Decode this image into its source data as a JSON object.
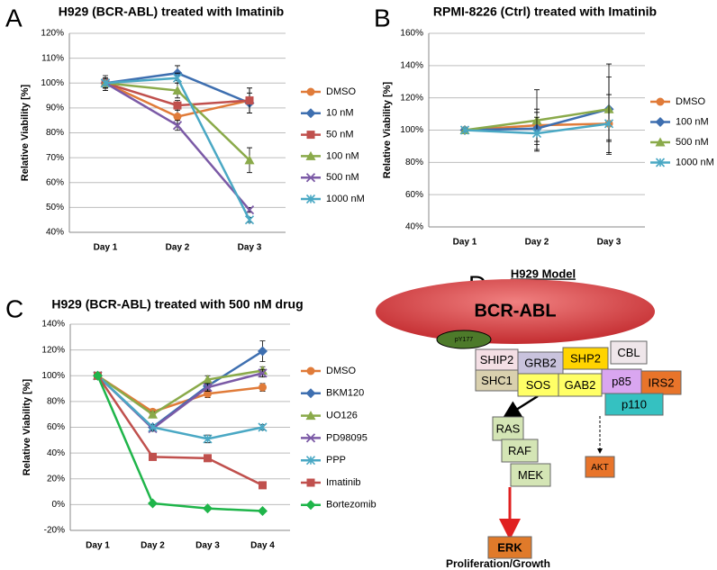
{
  "chart_data": [
    {
      "type": "line",
      "panel": "A",
      "title": "H929 (BCR-ABL) treated with Imatinib",
      "ylabel": "Relative Viability [%]",
      "grid": true,
      "categories": [
        "Day 1",
        "Day 2",
        "Day 3"
      ],
      "ylim": [
        40,
        120
      ],
      "yticks": [
        {
          "value": 40,
          "label": "40%"
        },
        {
          "value": 50,
          "label": "50%"
        },
        {
          "value": 60,
          "label": "60%"
        },
        {
          "value": 70,
          "label": "70%"
        },
        {
          "value": 80,
          "label": "80%"
        },
        {
          "value": 90,
          "label": "90%"
        },
        {
          "value": 100,
          "label": "100%"
        },
        {
          "value": 110,
          "label": "110%"
        },
        {
          "value": 120,
          "label": "120%"
        }
      ],
      "series": [
        {
          "name": "DMSO",
          "color": "#e07b39",
          "marker": "circle",
          "values": [
            100,
            86.5,
            93
          ],
          "errors": [
            2,
            3,
            5
          ]
        },
        {
          "name": "10 nM",
          "color": "#3e6fb0",
          "marker": "diamond",
          "values": [
            100,
            104,
            92
          ],
          "errors": [
            3,
            3,
            4
          ]
        },
        {
          "name": "50 nM",
          "color": "#c0504d",
          "marker": "square",
          "values": [
            100,
            91,
            93
          ],
          "errors": [
            2,
            2,
            5
          ]
        },
        {
          "name": "100 nM",
          "color": "#8aaa4a",
          "marker": "triangle",
          "values": [
            100,
            97,
            69
          ],
          "errors": [
            2,
            3,
            5
          ]
        },
        {
          "name": "500 nM",
          "color": "#7b5aa6",
          "marker": "x",
          "values": [
            100,
            83,
            49
          ],
          "errors": [
            2,
            2,
            1
          ]
        },
        {
          "name": "1000 nM",
          "color": "#4aa8c4",
          "marker": "star",
          "values": [
            100,
            102,
            45
          ],
          "errors": [
            2,
            2,
            1
          ]
        }
      ]
    },
    {
      "type": "line",
      "panel": "B",
      "title": "RPMI-8226 (Ctrl) treated with Imatinib",
      "ylabel": "Relative Viability [%]",
      "grid": true,
      "categories": [
        "Day 1",
        "Day 2",
        "Day 3"
      ],
      "ylim": [
        40,
        160
      ],
      "yticks": [
        {
          "value": 40,
          "label": "40%"
        },
        {
          "value": 60,
          "label": "60%"
        },
        {
          "value": 80,
          "label": "80%"
        },
        {
          "value": 100,
          "label": "100%"
        },
        {
          "value": 120,
          "label": "120%"
        },
        {
          "value": 140,
          "label": "140%"
        },
        {
          "value": 160,
          "label": "160%"
        }
      ],
      "series": [
        {
          "name": "DMSO",
          "color": "#e07b39",
          "marker": "circle",
          "values": [
            100,
            103,
            104
          ],
          "errors": [
            1,
            10,
            10
          ]
        },
        {
          "name": "100 nM",
          "color": "#3e6fb0",
          "marker": "diamond",
          "values": [
            100,
            101,
            113
          ],
          "errors": [
            1,
            10,
            20
          ]
        },
        {
          "name": "500 nM",
          "color": "#8aaa4a",
          "marker": "triangle",
          "values": [
            100,
            106,
            113
          ],
          "errors": [
            1,
            19,
            28
          ]
        },
        {
          "name": "1000 nM",
          "color": "#4aa8c4",
          "marker": "star",
          "values": [
            100,
            98,
            104
          ],
          "errors": [
            1,
            10,
            18
          ]
        }
      ]
    },
    {
      "type": "line",
      "panel": "C",
      "title": "H929 (BCR-ABL) treated with 500 nM drug",
      "ylabel": "Relative Viability [%]",
      "grid": true,
      "categories": [
        "Day 1",
        "Day 2",
        "Day 3",
        "Day 4"
      ],
      "ylim": [
        -20,
        140
      ],
      "yticks": [
        {
          "value": -20,
          "label": "-20%"
        },
        {
          "value": 0,
          "label": "0%"
        },
        {
          "value": 20,
          "label": "20%"
        },
        {
          "value": 40,
          "label": "40%"
        },
        {
          "value": 60,
          "label": "60%"
        },
        {
          "value": 80,
          "label": "80%"
        },
        {
          "value": 100,
          "label": "100%"
        },
        {
          "value": 120,
          "label": "120%"
        },
        {
          "value": 140,
          "label": "140%"
        }
      ],
      "series": [
        {
          "name": "DMSO",
          "color": "#e07b39",
          "marker": "circle",
          "values": [
            100,
            72,
            86,
            91
          ],
          "errors": [
            0,
            2,
            3,
            3
          ]
        },
        {
          "name": "BKM120",
          "color": "#3e6fb0",
          "marker": "diamond",
          "values": [
            100,
            60,
            92,
            119
          ],
          "errors": [
            0,
            2,
            3,
            8
          ]
        },
        {
          "name": "UO126",
          "color": "#8aaa4a",
          "marker": "triangle",
          "values": [
            100,
            70,
            97,
            104
          ],
          "errors": [
            0,
            2,
            3,
            3
          ]
        },
        {
          "name": "PD98095",
          "color": "#7b5aa6",
          "marker": "x",
          "values": [
            100,
            59,
            91,
            102
          ],
          "errors": [
            0,
            2,
            3,
            3
          ]
        },
        {
          "name": "PPP",
          "color": "#4aa8c4",
          "marker": "star",
          "values": [
            100,
            60,
            51,
            60
          ],
          "errors": [
            0,
            2,
            3,
            2
          ]
        },
        {
          "name": "Imatinib",
          "color": "#c0504d",
          "marker": "square",
          "values": [
            100,
            37,
            36,
            15
          ],
          "errors": [
            0,
            1,
            1,
            1
          ]
        },
        {
          "name": "Bortezomib",
          "color": "#1fb54a",
          "marker": "diamond",
          "values": [
            100,
            1,
            -3,
            -5
          ],
          "errors": [
            0,
            1,
            1,
            1
          ]
        }
      ]
    }
  ],
  "diagram": {
    "panel": "D",
    "title": "H929 Model",
    "caption": "Proliferation/Growth",
    "nodes": [
      {
        "label": "BCR-ABL"
      },
      {
        "label": "pY177"
      },
      {
        "label": "SHIP2"
      },
      {
        "label": "GRB2"
      },
      {
        "label": "SHP2"
      },
      {
        "label": "CBL"
      },
      {
        "label": "SHC1"
      },
      {
        "label": "SOS"
      },
      {
        "label": "GAB2"
      },
      {
        "label": "p85"
      },
      {
        "label": "IRS2"
      },
      {
        "label": "p110"
      },
      {
        "label": "RAS"
      },
      {
        "label": "RAF"
      },
      {
        "label": "MEK"
      },
      {
        "label": "ERK"
      },
      {
        "label": "AKT"
      }
    ]
  }
}
